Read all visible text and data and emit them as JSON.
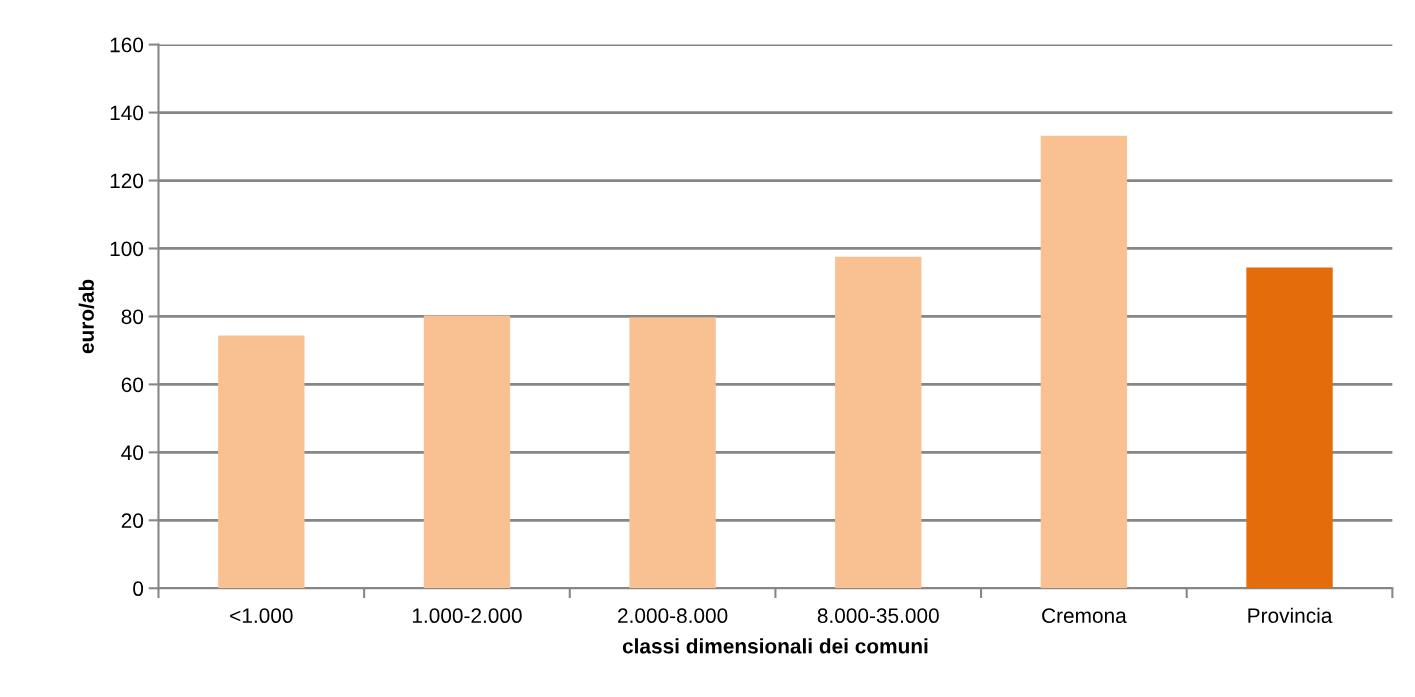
{
  "chart_data": {
    "type": "bar",
    "xlabel": "classi dimensionali dei comuni",
    "ylabel": "euro/ab",
    "categories": [
      "<1.000",
      "1.000-2.000",
      "2.000-8.000",
      "8.000-35.000",
      "Cremona",
      "Provincia"
    ],
    "values": [
      74.4,
      80.3,
      79.7,
      97.6,
      133.2,
      94.4
    ],
    "colors": [
      "#f9c191",
      "#f9c191",
      "#f9c191",
      "#f9c191",
      "#f9c191",
      "#e46c0a"
    ],
    "ylim": [
      0,
      160
    ],
    "yticks": [
      0,
      20,
      40,
      60,
      80,
      100,
      120,
      140,
      160
    ],
    "grid": "y"
  }
}
